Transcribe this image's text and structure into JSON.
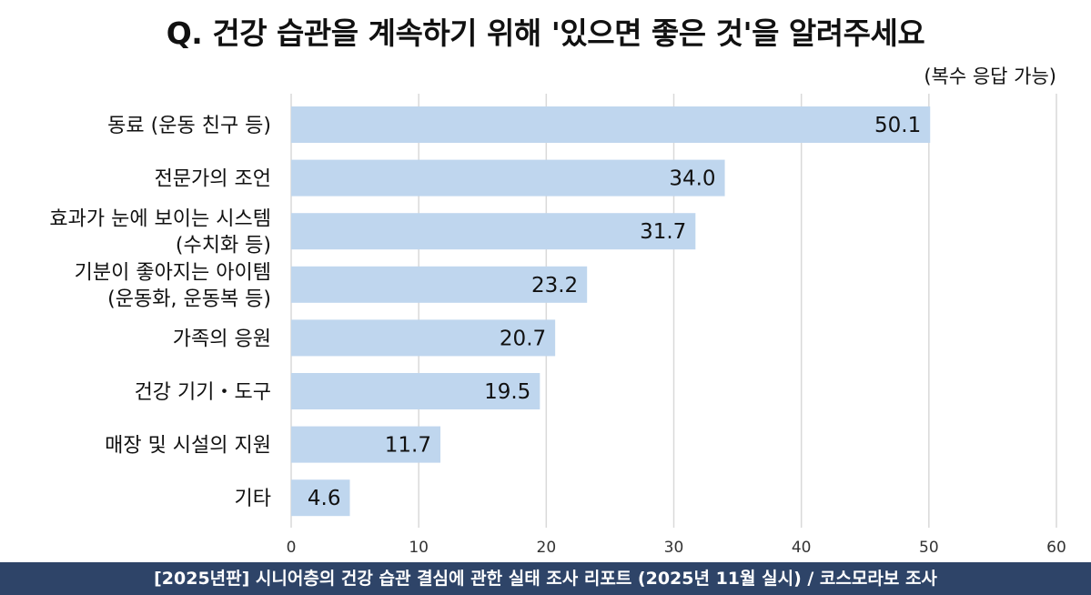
{
  "title": "Q. 건강 습관을 계속하기 위해 '있으면 좋은 것'을 알려주세요",
  "subtitle": "(복수 응답 가능)",
  "footer": "[2025년판] 시니어층의 건강 습관 결심에 관한 실태 조사 리포트 (2025년 11월 실시) / 코스모라보 조사",
  "colors": {
    "bar": "#bfd6ee",
    "footer_bg": "#2e4468",
    "grid": "#d9d9d9"
  },
  "chart_data": {
    "type": "bar",
    "orientation": "horizontal",
    "categories": [
      [
        "동료 (운동 친구 등)"
      ],
      [
        "전문가의 조언"
      ],
      [
        "효과가 눈에 보이는 시스템",
        "(수치화 등)"
      ],
      [
        "기분이 좋아지는 아이템",
        "(운동화, 운동복 등)"
      ],
      [
        "가족의 응원"
      ],
      [
        "건강 기기・도구"
      ],
      [
        "매장 및 시설의 지원"
      ],
      [
        "기타"
      ]
    ],
    "values": [
      50.1,
      34.0,
      31.7,
      23.2,
      20.7,
      19.5,
      11.7,
      4.6
    ],
    "value_labels": [
      "50.1",
      "34.0",
      "31.7",
      "23.2",
      "20.7",
      "19.5",
      "11.7",
      "4.6"
    ],
    "xlim": [
      0,
      60
    ],
    "xticks": [
      0,
      10,
      20,
      30,
      40,
      50,
      60
    ],
    "grid": true
  }
}
